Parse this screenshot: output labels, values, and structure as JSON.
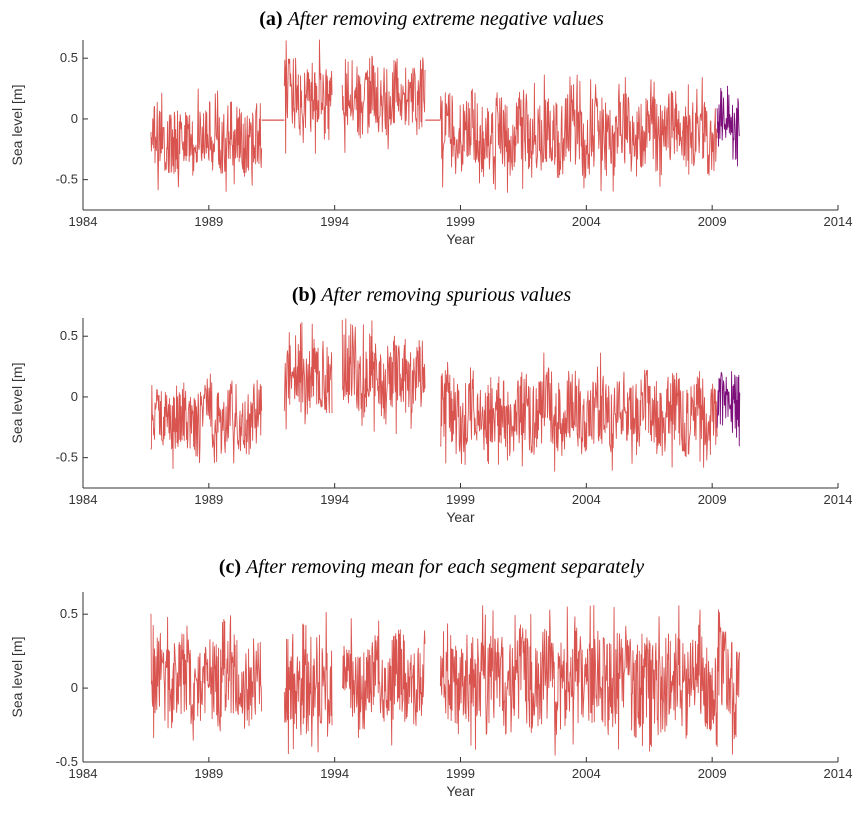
{
  "chart_data": [
    {
      "type": "line",
      "title_tag": "(a)",
      "title": "After removing extreme negative values",
      "xlabel": "Year",
      "ylabel": "Sea level [m]",
      "xlim": [
        1984,
        2014
      ],
      "ylim": [
        -0.75,
        0.65
      ],
      "xticks": [
        "1984",
        "1989",
        "1994",
        "1999",
        "2004",
        "2009",
        "2014"
      ],
      "yticks": [
        "0.5",
        "0",
        "-0.5"
      ],
      "colors": {
        "main": "#d9534f",
        "highlight": "#7d0f7a"
      },
      "series": [
        {
          "x0": 1986.7,
          "x1": 1991.1,
          "low": -0.5,
          "high": 0.15,
          "color": "main"
        },
        {
          "x0": 1991.1,
          "x1": 1992.0,
          "level": -0.01,
          "color": "main",
          "flat": true
        },
        {
          "x0": 1992.0,
          "x1": 1993.9,
          "low": -0.2,
          "high": 0.55,
          "color": "main"
        },
        {
          "x0": 1994.3,
          "x1": 1997.6,
          "low": -0.2,
          "high": 0.55,
          "color": "main"
        },
        {
          "x0": 1997.6,
          "x1": 1998.2,
          "level": -0.01,
          "color": "main",
          "flat": true
        },
        {
          "x0": 1998.2,
          "x1": 2009.2,
          "low": -0.5,
          "high": 0.25,
          "color": "main"
        },
        {
          "x0": 2009.2,
          "x1": 2010.1,
          "low": -0.35,
          "high": 0.3,
          "color": "highlight"
        }
      ]
    },
    {
      "type": "line",
      "title_tag": "(b)",
      "title": "After removing spurious values",
      "xlabel": "Year",
      "ylabel": "Sea level [m]",
      "xlim": [
        1984,
        2014
      ],
      "ylim": [
        -0.75,
        0.65
      ],
      "xticks": [
        "1984",
        "1989",
        "1994",
        "1999",
        "2004",
        "2009",
        "2014"
      ],
      "yticks": [
        "0.5",
        "0",
        "-0.5"
      ],
      "colors": {
        "main": "#d9534f",
        "highlight": "#7d0f7a"
      },
      "series": [
        {
          "x0": 1986.7,
          "x1": 1991.1,
          "low": -0.5,
          "high": 0.15,
          "color": "main"
        },
        {
          "x0": 1992.0,
          "x1": 1993.9,
          "low": -0.2,
          "high": 0.55,
          "color": "main"
        },
        {
          "x0": 1994.3,
          "x1": 1997.6,
          "low": -0.2,
          "high": 0.55,
          "color": "main"
        },
        {
          "x0": 1998.2,
          "x1": 2009.2,
          "low": -0.5,
          "high": 0.25,
          "color": "main"
        },
        {
          "x0": 2009.2,
          "x1": 2010.1,
          "low": -0.35,
          "high": 0.3,
          "color": "highlight"
        }
      ]
    },
    {
      "type": "line",
      "title_tag": "(c)",
      "title": "After removing mean for each segment separately",
      "xlabel": "Year",
      "ylabel": "Sea level [m]",
      "xlim": [
        1984,
        2014
      ],
      "ylim": [
        -0.5,
        0.65
      ],
      "xticks": [
        "1984",
        "1989",
        "1994",
        "1999",
        "2004",
        "2009",
        "2014"
      ],
      "yticks": [
        "0.5",
        "0",
        "-0.5"
      ],
      "colors": {
        "main": "#d9534f",
        "highlight": "#d9534f"
      },
      "series": [
        {
          "x0": 1986.7,
          "x1": 1991.1,
          "low": -0.3,
          "high": 0.4,
          "color": "main"
        },
        {
          "x0": 1992.0,
          "x1": 1993.9,
          "low": -0.35,
          "high": 0.4,
          "color": "main"
        },
        {
          "x0": 1994.3,
          "x1": 1997.6,
          "low": -0.3,
          "high": 0.4,
          "color": "main"
        },
        {
          "x0": 1998.2,
          "x1": 2010.1,
          "low": -0.35,
          "high": 0.45,
          "color": "main"
        }
      ]
    }
  ]
}
